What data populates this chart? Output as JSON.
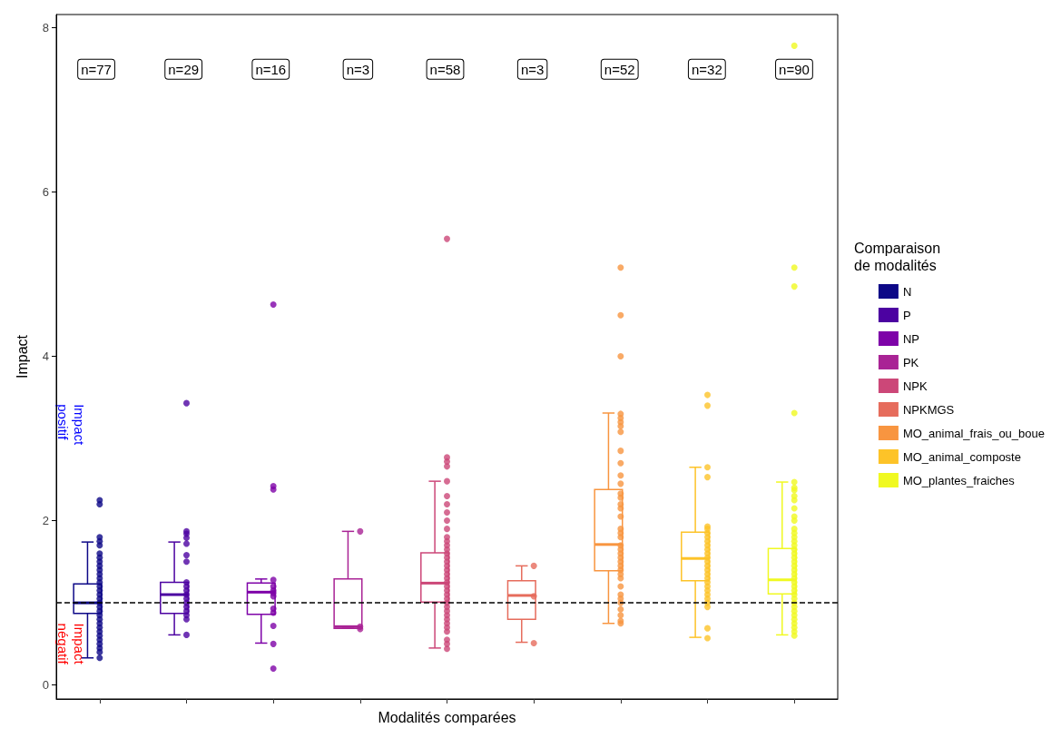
{
  "chart_data": {
    "type": "box",
    "xlabel": "Modalités comparées",
    "ylabel": "Impact",
    "legend_title": "Comparaison\nde modalités",
    "legend": "right",
    "grid": false,
    "tick_labels": "y",
    "marker": "circle",
    "categories": [
      null,
      null,
      null,
      null,
      null,
      null,
      null,
      null,
      null
    ],
    "ylim": [
      -0.17,
      8.16
    ],
    "yticks": [
      0,
      2,
      4,
      6,
      8
    ],
    "ref_lines": [
      {
        "axis": "y",
        "value": 1,
        "line_style": "dashed",
        "color": "#000000"
      }
    ],
    "annotations": [
      "n=77",
      "n=29",
      "n=16",
      "n=3",
      "n=58",
      "n=3",
      "n=52",
      "n=32",
      "n=90",
      "Impact\npositif",
      "Impact\nnégatif"
    ],
    "series": [
      {
        "name": "N",
        "color": "#0d0887",
        "boxes": [
          {
            "low": 0.33,
            "q1": 0.87,
            "median": 1.0,
            "q3": 1.23,
            "high": 1.74,
            "outliers": [
              2.25,
              2.2,
              1.8,
              1.75,
              1.7,
              1.6,
              1.55,
              1.5,
              1.45,
              1.4,
              1.35,
              1.3,
              1.25,
              1.2,
              1.15,
              1.1,
              1.05,
              1.0,
              0.95,
              0.9,
              0.85,
              0.8,
              0.75,
              0.7,
              0.65,
              0.6,
              0.55,
              0.5,
              0.45,
              0.4,
              0.33
            ]
          },
          null,
          null,
          null,
          null,
          null,
          null,
          null,
          null
        ]
      },
      {
        "name": "P",
        "color": "#4c02a1",
        "boxes": [
          null,
          {
            "low": 0.61,
            "q1": 0.87,
            "median": 1.1,
            "q3": 1.25,
            "high": 1.74,
            "outliers": [
              3.43,
              1.87,
              1.84,
              1.79,
              1.72,
              1.58,
              1.5,
              1.25,
              1.2,
              1.15,
              1.1,
              1.05,
              1.0,
              0.95,
              0.9,
              0.85,
              0.8,
              0.61
            ]
          },
          null,
          null,
          null,
          null,
          null,
          null,
          null
        ]
      },
      {
        "name": "NP",
        "color": "#7e03a8",
        "boxes": [
          null,
          null,
          {
            "low": 0.51,
            "q1": 0.86,
            "median": 1.13,
            "q3": 1.24,
            "high": 1.29,
            "outliers": [
              4.63,
              2.42,
              2.38,
              1.28,
              1.2,
              1.15,
              1.12,
              1.08,
              0.93,
              0.88,
              0.72,
              0.5,
              0.2
            ]
          },
          null,
          null,
          null,
          null,
          null,
          null
        ]
      },
      {
        "name": "PK",
        "color": "#a92395",
        "boxes": [
          null,
          null,
          null,
          {
            "low": 0.69,
            "q1": 0.69,
            "median": 0.71,
            "q3": 1.29,
            "high": 1.87,
            "outliers": [
              1.87,
              0.71,
              0.68
            ]
          },
          null,
          null,
          null,
          null,
          null
        ]
      },
      {
        "name": "NPK",
        "color": "#cc4778",
        "boxes": [
          null,
          null,
          null,
          null,
          {
            "low": 0.45,
            "q1": 1.01,
            "median": 1.24,
            "q3": 1.61,
            "high": 2.48,
            "outliers": [
              5.43,
              2.77,
              2.72,
              2.66,
              2.48,
              2.3,
              2.2,
              2.1,
              2.0,
              1.9,
              1.8,
              1.75,
              1.7,
              1.65,
              1.6,
              1.55,
              1.5,
              1.45,
              1.4,
              1.35,
              1.3,
              1.25,
              1.2,
              1.15,
              1.1,
              1.05,
              1.0,
              0.95,
              0.9,
              0.85,
              0.8,
              0.75,
              0.7,
              0.65,
              0.55,
              0.5,
              0.44
            ]
          },
          null,
          null,
          null,
          null
        ]
      },
      {
        "name": "NPKMGS",
        "color": "#e66c5c",
        "boxes": [
          null,
          null,
          null,
          null,
          null,
          {
            "low": 0.52,
            "q1": 0.8,
            "median": 1.09,
            "q3": 1.27,
            "high": 1.45,
            "outliers": [
              1.45,
              1.08,
              0.51
            ]
          },
          null,
          null,
          null
        ]
      },
      {
        "name": "MO_animal_frais_ou_boue",
        "color": "#f89540",
        "boxes": [
          null,
          null,
          null,
          null,
          null,
          null,
          {
            "low": 0.75,
            "q1": 1.39,
            "median": 1.71,
            "q3": 2.38,
            "high": 3.31,
            "outliers": [
              5.08,
              4.5,
              4.0,
              3.3,
              3.25,
              3.2,
              3.15,
              3.08,
              2.85,
              2.7,
              2.55,
              2.45,
              2.33,
              2.28,
              2.2,
              2.15,
              2.05,
              1.9,
              1.85,
              1.8,
              1.7,
              1.65,
              1.6,
              1.55,
              1.5,
              1.45,
              1.4,
              1.35,
              1.3,
              1.2,
              1.1,
              1.05,
              1.0,
              0.92,
              0.85,
              0.78,
              0.75
            ]
          },
          null,
          null
        ]
      },
      {
        "name": "MO_animal_composte",
        "color": "#fdc328",
        "boxes": [
          null,
          null,
          null,
          null,
          null,
          null,
          null,
          {
            "low": 0.58,
            "q1": 1.27,
            "median": 1.54,
            "q3": 1.86,
            "high": 2.65,
            "outliers": [
              3.53,
              3.4,
              2.65,
              2.53,
              1.93,
              1.9,
              1.85,
              1.8,
              1.75,
              1.7,
              1.65,
              1.6,
              1.55,
              1.5,
              1.45,
              1.4,
              1.35,
              1.3,
              1.25,
              1.2,
              1.15,
              1.1,
              1.05,
              1.0,
              0.95,
              0.69,
              0.57
            ]
          },
          null
        ]
      },
      {
        "name": "MO_plantes_fraiches",
        "color": "#f0f921",
        "boxes": [
          null,
          null,
          null,
          null,
          null,
          null,
          null,
          null,
          {
            "low": 0.61,
            "q1": 1.11,
            "median": 1.28,
            "q3": 1.66,
            "high": 2.47,
            "outliers": [
              7.78,
              5.08,
              4.85,
              3.31,
              2.47,
              2.4,
              2.37,
              2.3,
              2.25,
              2.15,
              2.05,
              2.0,
              1.9,
              1.85,
              1.8,
              1.75,
              1.7,
              1.65,
              1.6,
              1.55,
              1.5,
              1.45,
              1.4,
              1.35,
              1.3,
              1.25,
              1.2,
              1.15,
              1.1,
              1.05,
              1.0,
              0.95,
              0.9,
              0.85,
              0.8,
              0.75,
              0.7,
              0.65,
              0.6
            ]
          }
        ]
      }
    ]
  }
}
